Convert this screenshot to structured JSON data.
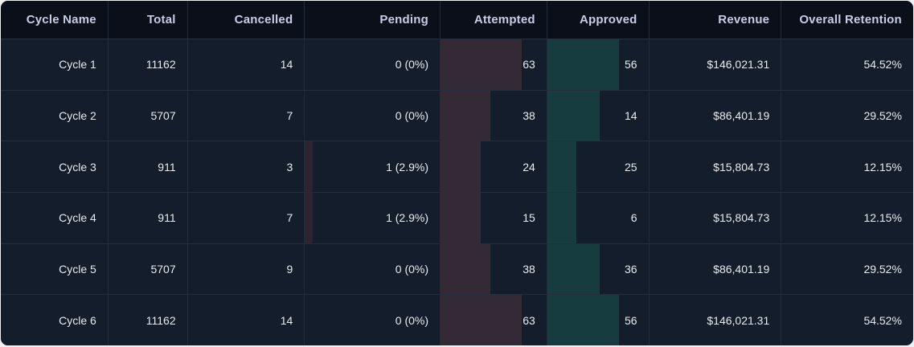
{
  "colors": {
    "attempted_bar": "#342a35",
    "approved_bar": "#163c3f",
    "pending_bar": "#2e2431",
    "header_bg": "#0a0f19",
    "row_bg": "#141d2b",
    "header_text": "#c7cde4",
    "cell_text": "#e8eaef"
  },
  "table": {
    "columns": [
      "Cycle Name",
      "Total",
      "Cancelled",
      "Pending",
      "Attempted",
      "Approved",
      "Revenue",
      "Overall Retention"
    ],
    "rows": [
      {
        "cycle": "Cycle 1",
        "total": "11162",
        "cancelled": "14",
        "pending": "0 (0%)",
        "attempted": "63",
        "approved": "56",
        "revenue": "$146,021.31",
        "retention": "54.52%",
        "pending_bar": "0%",
        "attempted_bar": "77%",
        "approved_bar": "71%"
      },
      {
        "cycle": "Cycle 2",
        "total": "5707",
        "cancelled": "7",
        "pending": "0 (0%)",
        "attempted": "38",
        "approved": "14",
        "revenue": "$86,401.19",
        "retention": "29.52%",
        "pending_bar": "0%",
        "attempted_bar": "47%",
        "approved_bar": "52%"
      },
      {
        "cycle": "Cycle 3",
        "total": "911",
        "cancelled": "3",
        "pending": "1 (2.9%)",
        "attempted": "24",
        "approved": "25",
        "revenue": "$15,804.73",
        "retention": "12.15%",
        "pending_bar": "6%",
        "attempted_bar": "38%",
        "approved_bar": "29%"
      },
      {
        "cycle": "Cycle 4",
        "total": "911",
        "cancelled": "7",
        "pending": "1 (2.9%)",
        "attempted": "15",
        "approved": "6",
        "revenue": "$15,804.73",
        "retention": "12.15%",
        "pending_bar": "6%",
        "attempted_bar": "38%",
        "approved_bar": "29%"
      },
      {
        "cycle": "Cycle 5",
        "total": "5707",
        "cancelled": "9",
        "pending": "0 (0%)",
        "attempted": "38",
        "approved": "36",
        "revenue": "$86,401.19",
        "retention": "29.52%",
        "pending_bar": "0%",
        "attempted_bar": "47%",
        "approved_bar": "52%"
      },
      {
        "cycle": "Cycle 6",
        "total": "11162",
        "cancelled": "14",
        "pending": "0 (0%)",
        "attempted": "63",
        "approved": "56",
        "revenue": "$146,021.31",
        "retention": "54.52%",
        "pending_bar": "0%",
        "attempted_bar": "77%",
        "approved_bar": "71%"
      }
    ]
  }
}
